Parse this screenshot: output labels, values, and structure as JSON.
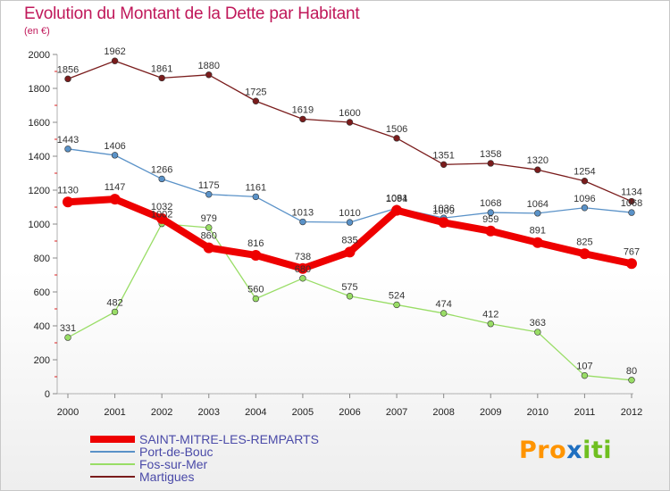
{
  "title": "Evolution du Montant de la Dette par Habitant",
  "subtitle": "(en €)",
  "logo": {
    "p": "Pro",
    "x": "x",
    "i": "iti"
  },
  "chart_data": {
    "type": "line",
    "x": [
      "2000",
      "2001",
      "2002",
      "2003",
      "2004",
      "2005",
      "2006",
      "2007",
      "2008",
      "2009",
      "2010",
      "2011",
      "2012"
    ],
    "ylim": [
      0,
      2000
    ],
    "yticks": [
      "0",
      "200",
      "400",
      "600",
      "800",
      "1000",
      "1200",
      "1400",
      "1600",
      "1800",
      "2000"
    ],
    "grid": false,
    "legend": "bottom-left",
    "series": [
      {
        "name": "Martigues",
        "color": "#7a1c1c",
        "width": 1.3,
        "values": [
          1856,
          1962,
          1861,
          1880,
          1725,
          1619,
          1600,
          1506,
          1351,
          1358,
          1320,
          1254,
          1134
        ],
        "labels": [
          "1856",
          "1962",
          "1861",
          "1880",
          "1725",
          "1619",
          "1600",
          "1506",
          "1351",
          "1358",
          "1320",
          "1254",
          "1134"
        ]
      },
      {
        "name": "Port-de-Bouc",
        "color": "#5a92c8",
        "width": 1.3,
        "values": [
          1443,
          1406,
          1266,
          1175,
          1161,
          1013,
          1010,
          1094,
          1036,
          1068,
          1064,
          1096,
          1068
        ],
        "labels": [
          "1443",
          "1406",
          "1266",
          "1175",
          "1161",
          "1013",
          "1010",
          "1094",
          "1036",
          "1068",
          "1064",
          "1096",
          "1068"
        ]
      },
      {
        "name": "Fos-sur-Mer",
        "color": "#99dd66",
        "width": 1.3,
        "values": [
          331,
          482,
          1002,
          979,
          560,
          680,
          575,
          524,
          474,
          412,
          363,
          107,
          80
        ],
        "labels": [
          "331",
          "482",
          "1002",
          "979",
          "560",
          "680",
          "575",
          "524",
          "474",
          "412",
          "363",
          "107",
          "80"
        ]
      },
      {
        "name": "SAINT-MITRE-LES-REMPARTS",
        "color": "#ee0000",
        "width": 8,
        "values": [
          1130,
          1147,
          1032,
          860,
          816,
          738,
          835,
          1081,
          1009,
          959,
          891,
          825,
          767
        ],
        "labels": [
          "1130",
          "1147",
          "1032",
          "860",
          "816",
          "738",
          "835",
          "1081",
          "1009",
          "959",
          "891",
          "825",
          "767"
        ]
      }
    ],
    "legend_order": [
      "SAINT-MITRE-LES-REMPARTS",
      "Port-de-Bouc",
      "Fos-sur-Mer",
      "Martigues"
    ]
  }
}
